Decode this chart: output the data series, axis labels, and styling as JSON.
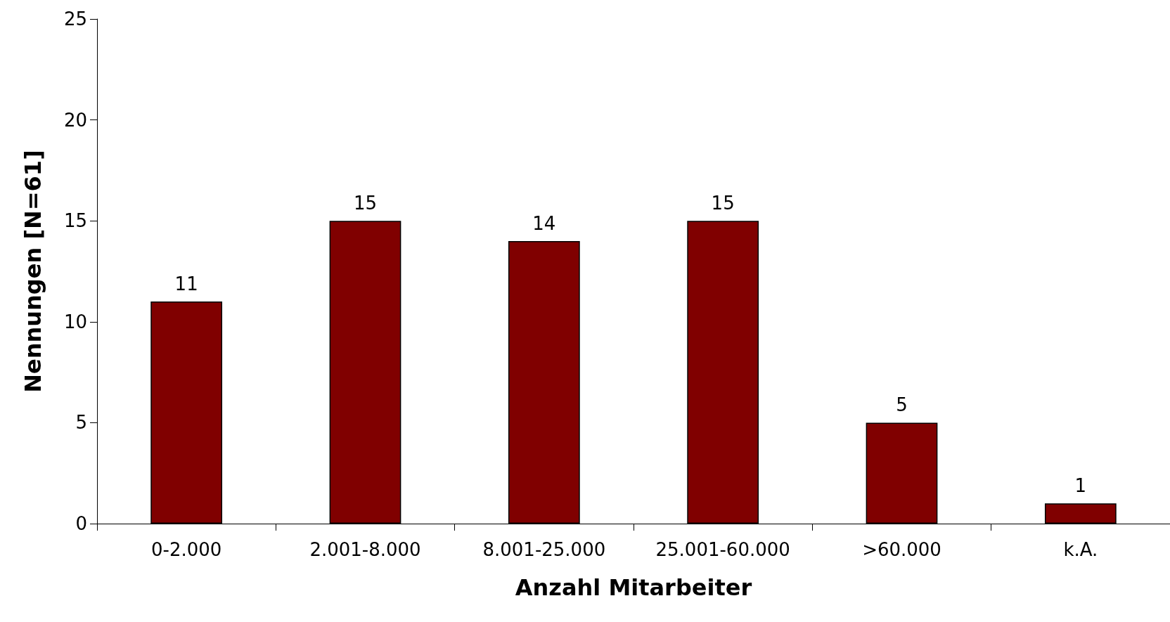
{
  "chart_data": {
    "type": "bar",
    "xlabel": "Anzahl Mitarbeiter",
    "ylabel": "Nennungen [N=61]",
    "categories": [
      "0-2.000",
      "2.001-8.000",
      "8.001-25.000",
      "25.001-60.000",
      ">60.000",
      "k.A."
    ],
    "values": [
      11,
      15,
      14,
      15,
      5,
      1
    ],
    "color": "#800000",
    "ylim": [
      0,
      25
    ],
    "yticks": [
      0,
      5,
      10,
      15,
      20,
      25
    ],
    "grid": false,
    "data_labels": true
  }
}
